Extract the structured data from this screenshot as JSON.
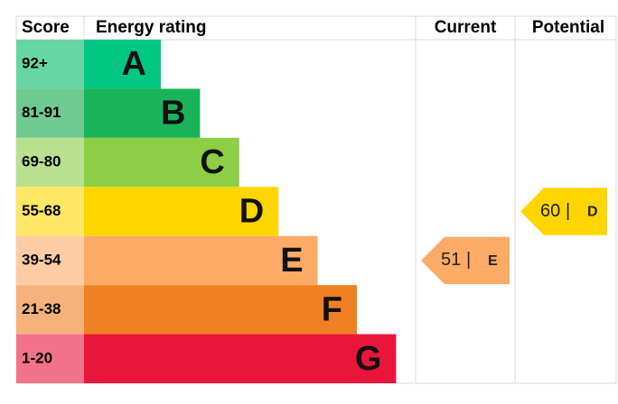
{
  "chart_data": {
    "type": "epc",
    "headers": {
      "score": "Score",
      "rating": "Energy rating",
      "current": "Current",
      "potential": "Potential"
    },
    "bands": [
      {
        "score": "92+",
        "letter": "A",
        "color": "#00c781",
        "score_color": "#66d6a7"
      },
      {
        "score": "81-91",
        "letter": "B",
        "color": "#19b459",
        "score_color": "#6fcb8f"
      },
      {
        "score": "69-80",
        "letter": "C",
        "color": "#8dce46",
        "score_color": "#b9e08f"
      },
      {
        "score": "55-68",
        "letter": "D",
        "color": "#ffd500",
        "score_color": "#ffe766"
      },
      {
        "score": "39-54",
        "letter": "E",
        "color": "#fcaa65",
        "score_color": "#fdcca2"
      },
      {
        "score": "21-38",
        "letter": "F",
        "color": "#ef8023",
        "score_color": "#f5b37b"
      },
      {
        "score": "1-20",
        "letter": "G",
        "color": "#e9153b",
        "score_color": "#f27389"
      }
    ],
    "separator": "|",
    "current": {
      "value": 51,
      "letter": "E",
      "color": "#fcaa65"
    },
    "potential": {
      "value": 60,
      "letter": "D",
      "color": "#ffd500"
    }
  }
}
